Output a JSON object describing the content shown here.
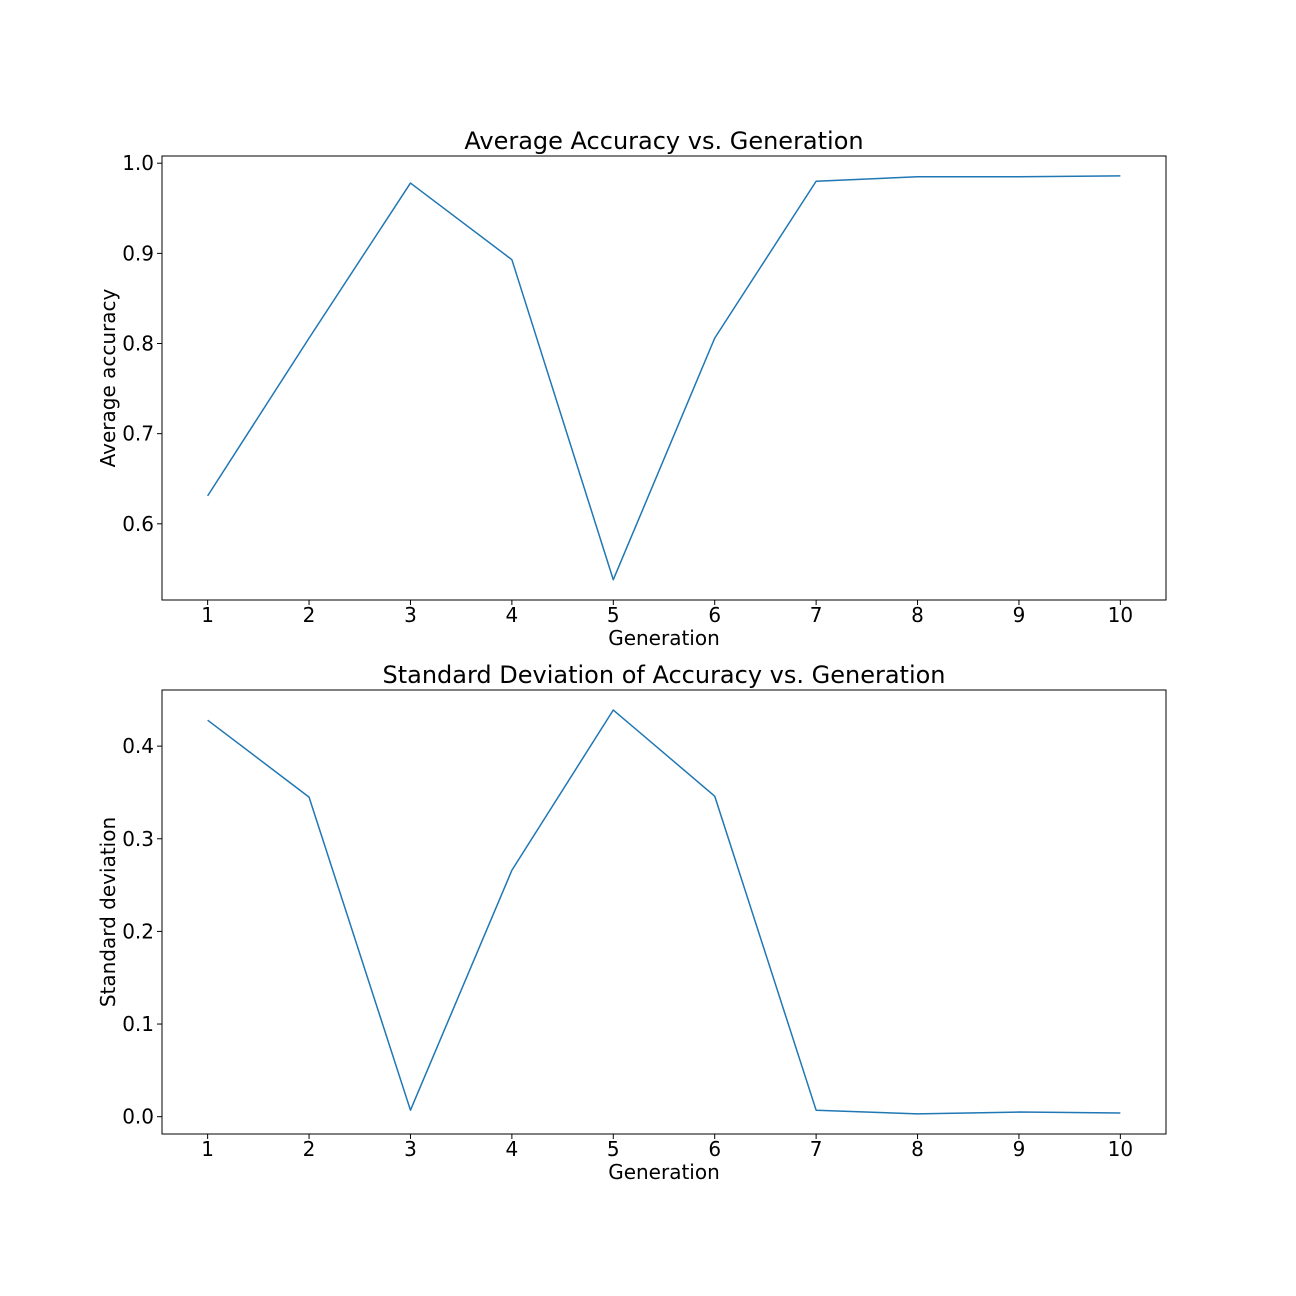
{
  "chart_data": [
    {
      "type": "line",
      "title": "Average Accuracy vs. Generation",
      "xlabel": "Generation",
      "ylabel": "Average accuracy",
      "xlim": [
        0.55,
        10.45
      ],
      "ylim": [
        0.5155,
        1.008
      ],
      "xticks": [
        1,
        2,
        3,
        4,
        5,
        6,
        7,
        8,
        9,
        10
      ],
      "xtick_labels": [
        "1",
        "2",
        "3",
        "4",
        "5",
        "6",
        "7",
        "8",
        "9",
        "10"
      ],
      "yticks": [
        0.6,
        0.7,
        0.8,
        0.9,
        1.0
      ],
      "ytick_labels": [
        "0.6",
        "0.7",
        "0.8",
        "0.9",
        "1.0"
      ],
      "grid": false,
      "series": [
        {
          "color": "#1f77b4",
          "x": [
            1,
            2,
            3,
            4,
            5,
            6,
            7,
            8,
            9,
            10
          ],
          "y": [
            0.631,
            0.806,
            0.978,
            0.893,
            0.538,
            0.806,
            0.98,
            0.985,
            0.985,
            0.986
          ]
        }
      ]
    },
    {
      "type": "line",
      "title": "Standard Deviation of Accuracy vs. Generation",
      "xlabel": "Generation",
      "ylabel": "Standard deviation",
      "xlim": [
        0.55,
        10.45
      ],
      "ylim": [
        -0.0187,
        0.4606
      ],
      "xticks": [
        1,
        2,
        3,
        4,
        5,
        6,
        7,
        8,
        9,
        10
      ],
      "xtick_labels": [
        "1",
        "2",
        "3",
        "4",
        "5",
        "6",
        "7",
        "8",
        "9",
        "10"
      ],
      "yticks": [
        0.0,
        0.1,
        0.2,
        0.3,
        0.4
      ],
      "ytick_labels": [
        "0.0",
        "0.1",
        "0.2",
        "0.3",
        "0.4"
      ],
      "grid": false,
      "series": [
        {
          "color": "#1f77b4",
          "x": [
            1,
            2,
            3,
            4,
            5,
            6,
            7,
            8,
            9,
            10
          ],
          "y": [
            0.428,
            0.345,
            0.007,
            0.266,
            0.439,
            0.346,
            0.007,
            0.003,
            0.005,
            0.004
          ]
        }
      ]
    }
  ]
}
